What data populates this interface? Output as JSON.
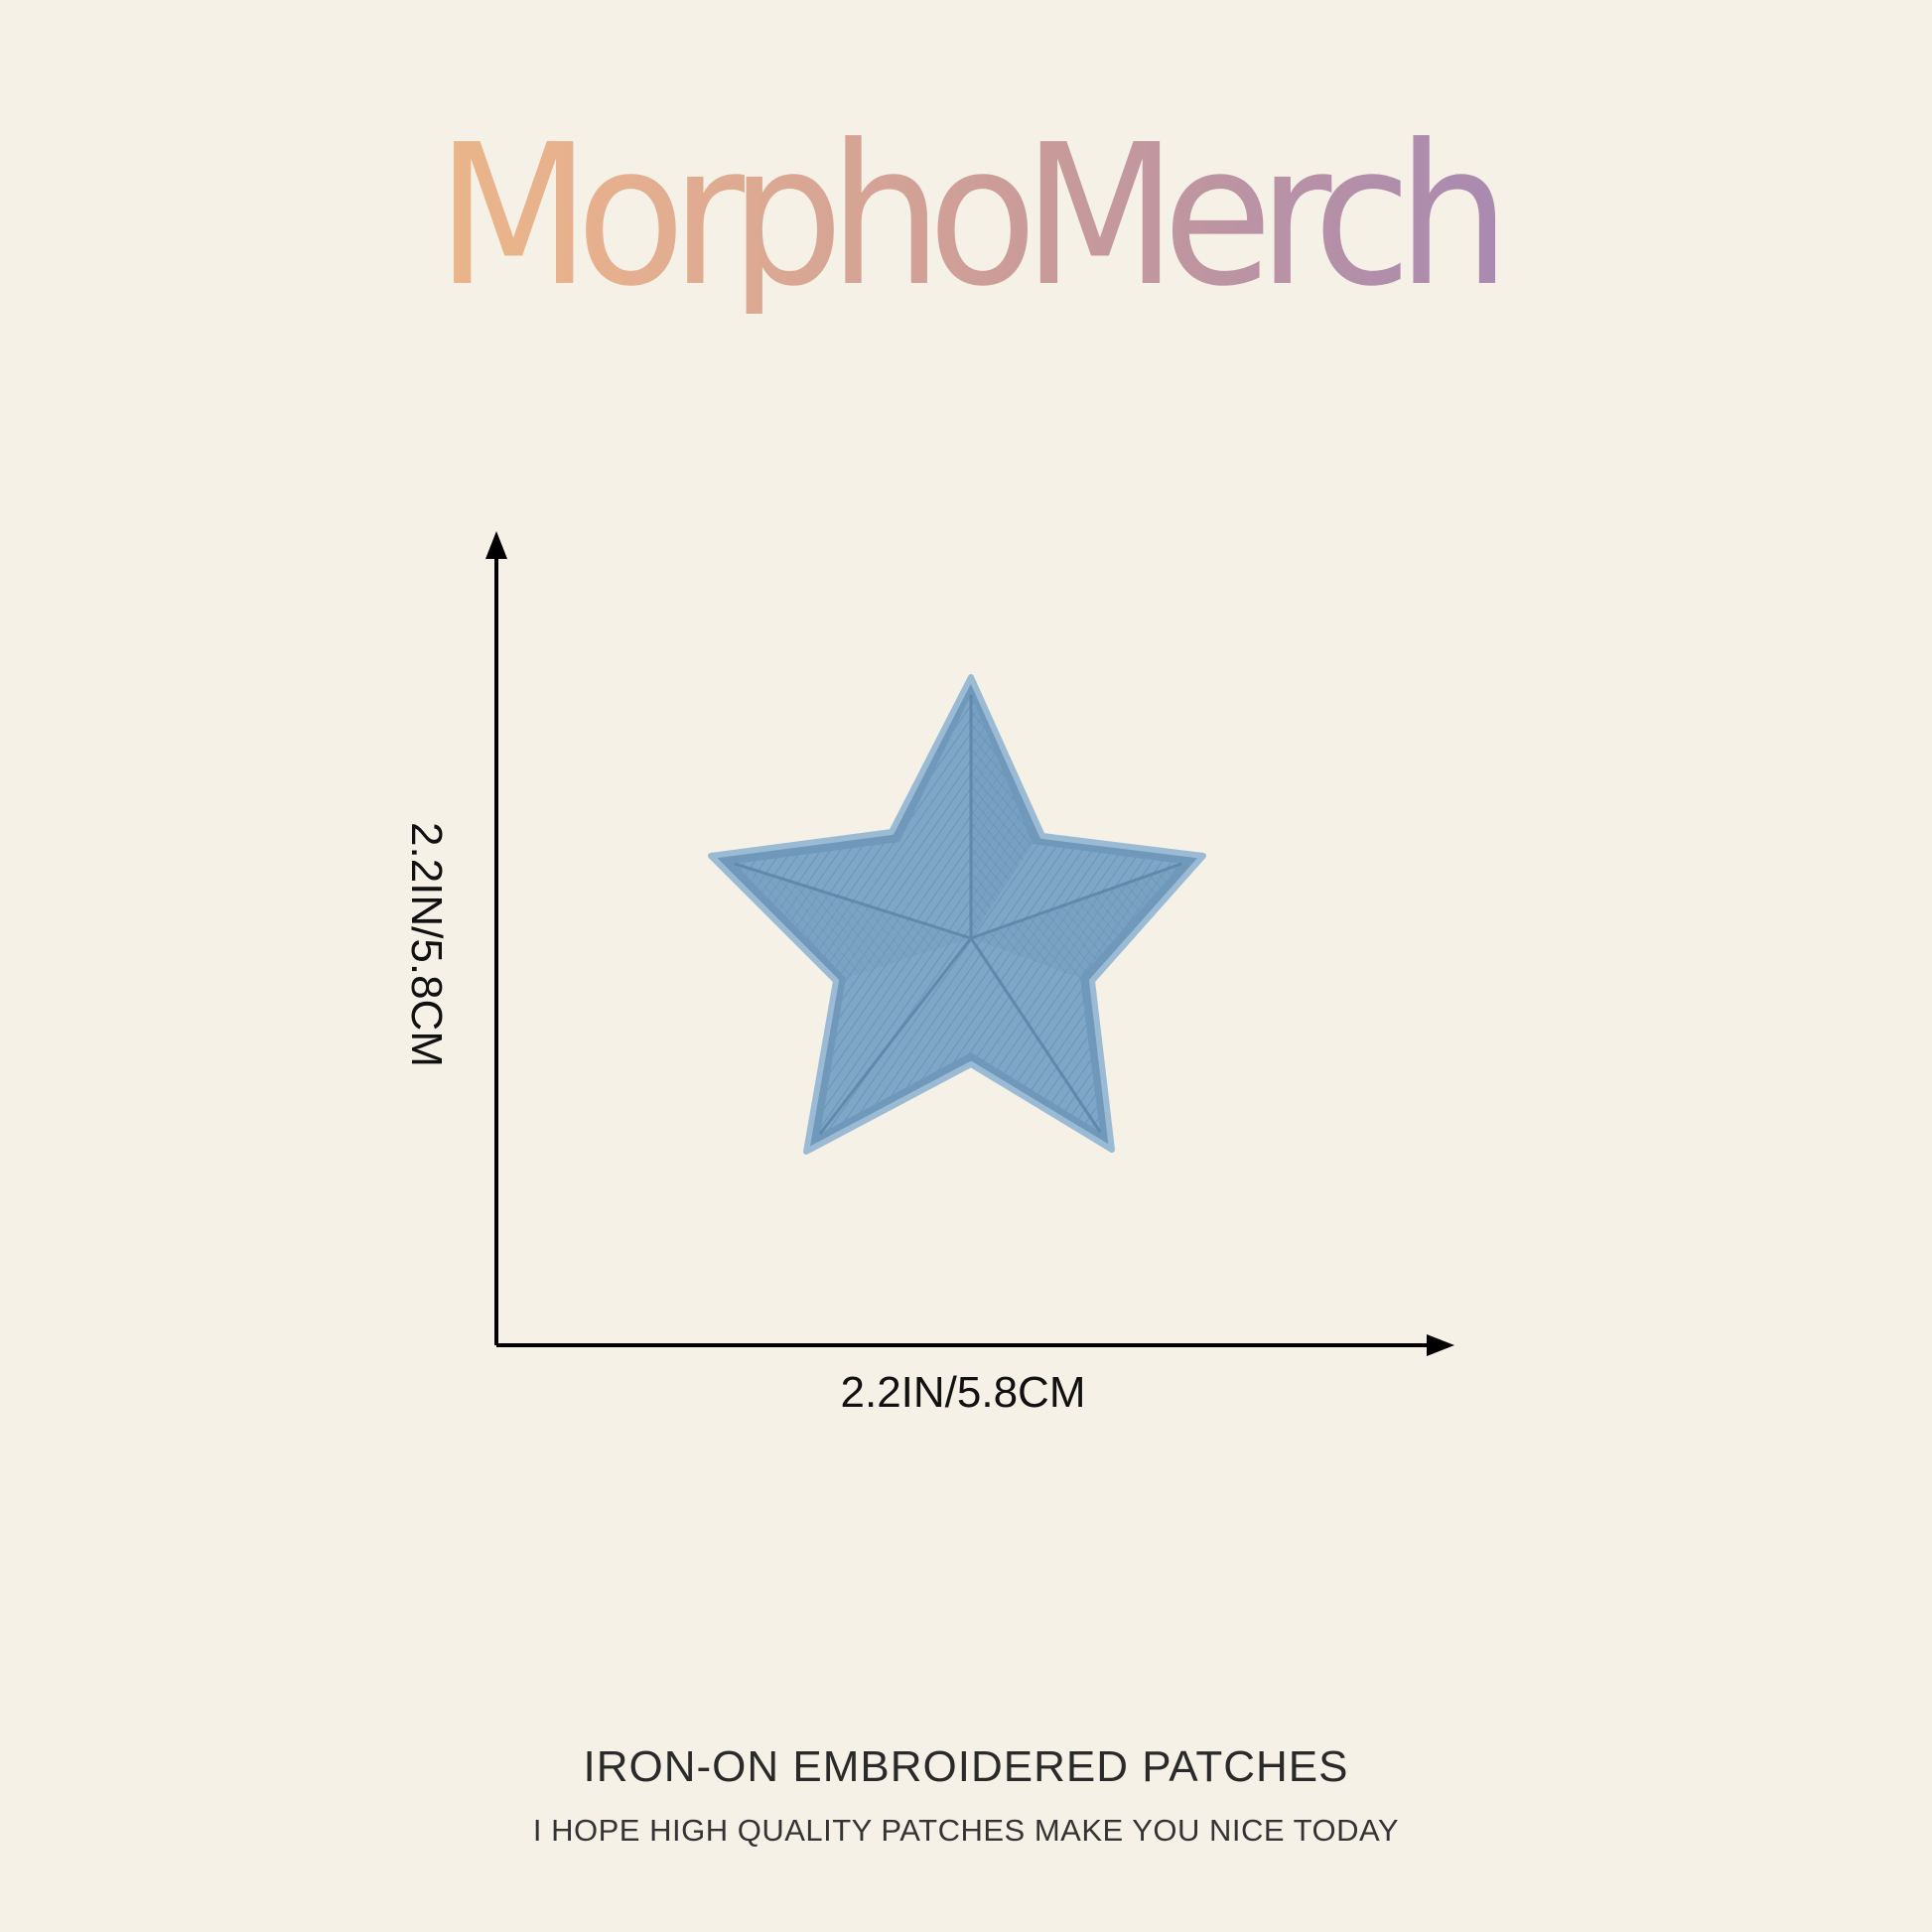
{
  "brand": {
    "name": "MorphoMerch"
  },
  "product": {
    "width_label": "2.2IN/5.8CM",
    "height_label": "2.2IN/5.8CM",
    "image": "blue-star-embroidered-patch",
    "colors": {
      "patch": "#7ea6c6",
      "patch_dark": "#5f88aa",
      "background": "#f6f1e7"
    }
  },
  "footer": {
    "headline": "IRON-ON EMBROIDERED PATCHES",
    "tagline": "I HOPE HIGH QUALITY PATCHES MAKE YOU NICE TODAY"
  }
}
